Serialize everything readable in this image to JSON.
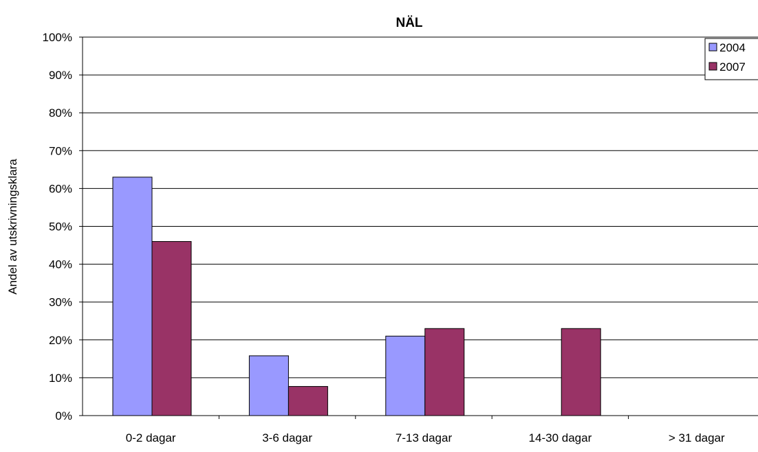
{
  "chart_data": {
    "type": "bar",
    "title": "NÄL",
    "xlabel": "",
    "ylabel": "Andel av utskrivningsklara",
    "categories": [
      "0-2 dagar",
      "3-6 dagar",
      "7-13 dagar",
      "14-30 dagar",
      "> 31 dagar"
    ],
    "series": [
      {
        "name": "2004",
        "values": [
          0.63,
          0.158,
          0.21,
          0,
          0
        ],
        "color": "#9999ff"
      },
      {
        "name": "2007",
        "values": [
          0.46,
          0.077,
          0.23,
          0.23,
          0
        ],
        "color": "#993366"
      }
    ],
    "ylim": [
      0,
      1
    ],
    "yticks": [
      0,
      0.1,
      0.2,
      0.3,
      0.4,
      0.5,
      0.6,
      0.7,
      0.8,
      0.9,
      1.0
    ],
    "ytick_labels": [
      "0%",
      "10%",
      "20%",
      "30%",
      "40%",
      "50%",
      "60%",
      "70%",
      "80%",
      "90%",
      "100%"
    ],
    "grid": true,
    "legend_position": "top-right"
  }
}
